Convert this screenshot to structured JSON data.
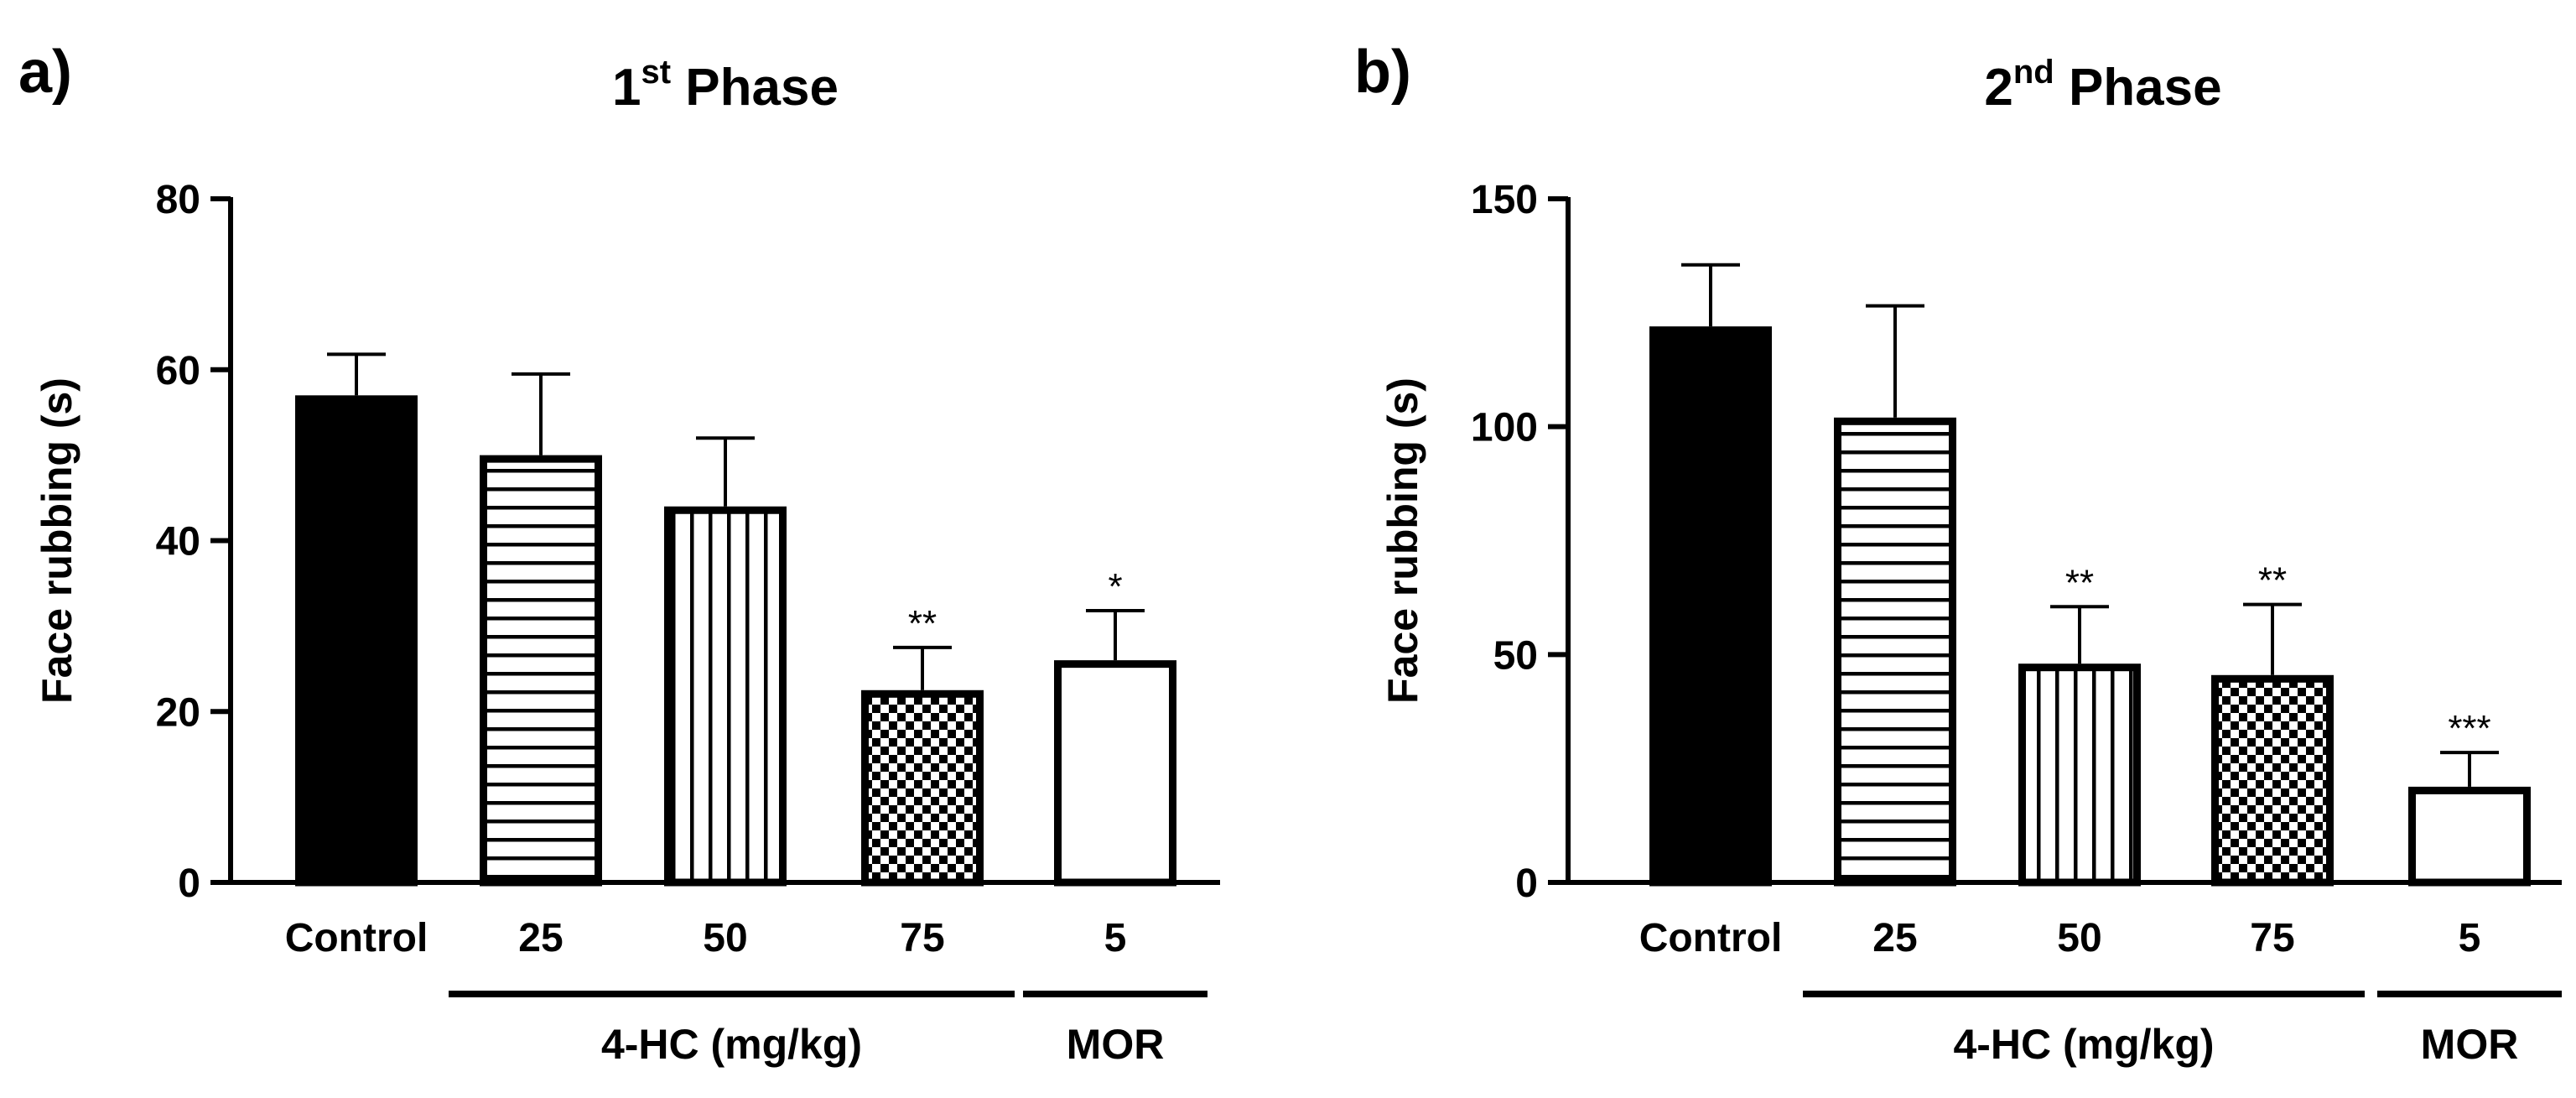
{
  "chart_data": [
    {
      "type": "bar",
      "panel_label": "a)",
      "title": "1st Phase",
      "title_main": "1",
      "title_sup": "st",
      "title_rest": " Phase",
      "xlabel": "",
      "ylabel": "Face rubbing (s)",
      "ylim": [
        0,
        80
      ],
      "yticks": [
        0,
        20,
        40,
        60,
        80
      ],
      "categories": [
        "Control",
        "25",
        "50",
        "75",
        "5"
      ],
      "values": [
        57,
        50,
        44,
        22.5,
        26
      ],
      "errors": [
        4.8,
        9.5,
        8,
        5,
        5.8
      ],
      "patterns": [
        "solid",
        "hlines",
        "vlines",
        "checker",
        "empty"
      ],
      "significance": [
        "",
        "",
        "",
        "**",
        "*"
      ],
      "groups": [
        {
          "label": "4-HC (mg/kg)",
          "from": 1,
          "to": 3
        },
        {
          "label": "MOR",
          "from": 4,
          "to": 4
        }
      ]
    },
    {
      "type": "bar",
      "panel_label": "b)",
      "title": "2nd Phase",
      "title_main": "2",
      "title_sup": "nd",
      "title_rest": " Phase",
      "xlabel": "",
      "ylabel": "Face rubbing (s)",
      "ylim": [
        0,
        150
      ],
      "yticks": [
        0,
        50,
        100,
        150
      ],
      "categories": [
        "Control",
        "25",
        "50",
        "75",
        "5"
      ],
      "values": [
        122,
        102,
        48,
        45.5,
        21
      ],
      "errors": [
        13.5,
        24.5,
        12.5,
        15.5,
        7.5
      ],
      "patterns": [
        "solid",
        "hlines",
        "vlines",
        "checker",
        "empty"
      ],
      "significance": [
        "",
        "",
        "**",
        "**",
        "***"
      ],
      "groups": [
        {
          "label": "4-HC (mg/kg)",
          "from": 1,
          "to": 3
        },
        {
          "label": "MOR",
          "from": 4,
          "to": 4
        }
      ]
    }
  ]
}
